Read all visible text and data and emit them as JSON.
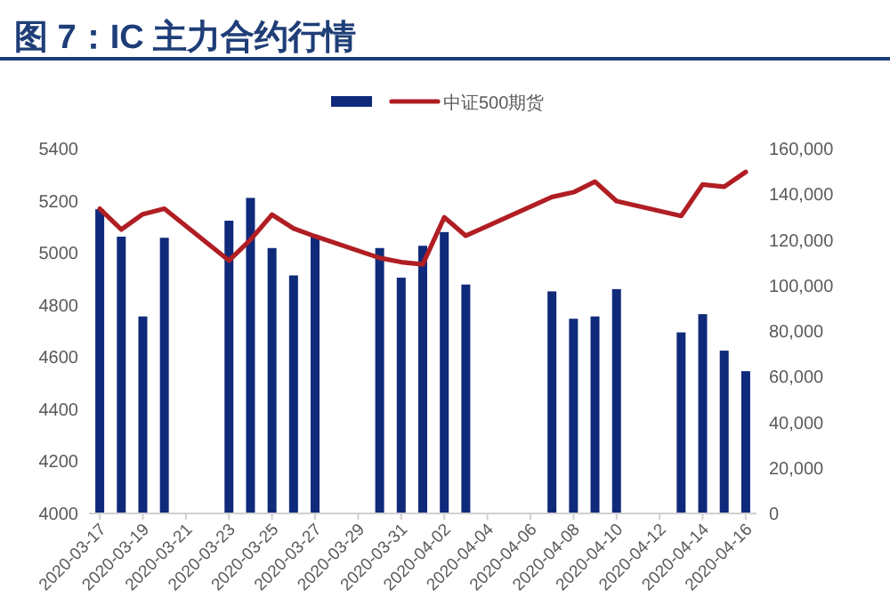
{
  "chart_data": {
    "type": "bar",
    "title": "图 7：IC 主力合约行情",
    "x": [
      "2020-03-17",
      "2020-03-18",
      "2020-03-19",
      "2020-03-20",
      "2020-03-23",
      "2020-03-24",
      "2020-03-25",
      "2020-03-26",
      "2020-03-27",
      "2020-03-30",
      "2020-03-31",
      "2020-04-01",
      "2020-04-02",
      "2020-04-03",
      "2020-04-07",
      "2020-04-08",
      "2020-04-09",
      "2020-04-10",
      "2020-04-13",
      "2020-04-14",
      "2020-04-15",
      "2020-04-16"
    ],
    "series": [
      {
        "axis": "y2",
        "color": "#0f2a7a",
        "values": [
          133000,
          121000,
          86000,
          120500,
          128000,
          138000,
          116000,
          104000,
          121000,
          116000,
          103000,
          117000,
          123000,
          100000,
          97000,
          85000,
          86000,
          98000,
          79000,
          87000,
          71000,
          62000
        ]
      },
      {
        "type": "line",
        "axis": "y",
        "name": "中证500期货",
        "color": "#b01e23",
        "values": [
          5166,
          5086,
          5145,
          5166,
          4967,
          5047,
          5143,
          5090,
          5060,
          4977,
          4961,
          4952,
          5133,
          5062,
          5211,
          5229,
          5270,
          5195,
          5138,
          5259,
          5250,
          5307
        ]
      }
    ],
    "xlim": [
      "2020-03-16T12:00",
      "2020-04-16T12:00"
    ],
    "xticks": [
      "2020-03-17",
      "2020-03-19",
      "2020-03-21",
      "2020-03-23",
      "2020-03-25",
      "2020-03-27",
      "2020-03-29",
      "2020-03-31",
      "2020-04-02",
      "2020-04-04",
      "2020-04-06",
      "2020-04-08",
      "2020-04-10",
      "2020-04-12",
      "2020-04-14",
      "2020-04-16"
    ],
    "ylim": [
      4000,
      5400
    ],
    "yticks": [
      4000,
      4200,
      4400,
      4600,
      4800,
      5000,
      5200,
      5400
    ],
    "y2lim": [
      0,
      160000
    ],
    "y2ticks": [
      0,
      {
        "value": 20000,
        "label": "20,000"
      },
      {
        "value": 40000,
        "label": "40,000"
      },
      {
        "value": 60000,
        "label": "60,000"
      },
      {
        "value": 80000,
        "label": "80,000"
      },
      {
        "value": 100000,
        "label": "100,000"
      },
      {
        "value": 120000,
        "label": "120,000"
      },
      {
        "value": 140000,
        "label": "140,000"
      },
      {
        "value": 160000,
        "label": "160,000"
      }
    ],
    "legend": "top",
    "grid": false,
    "marker": "none",
    "line_style": "solid"
  }
}
